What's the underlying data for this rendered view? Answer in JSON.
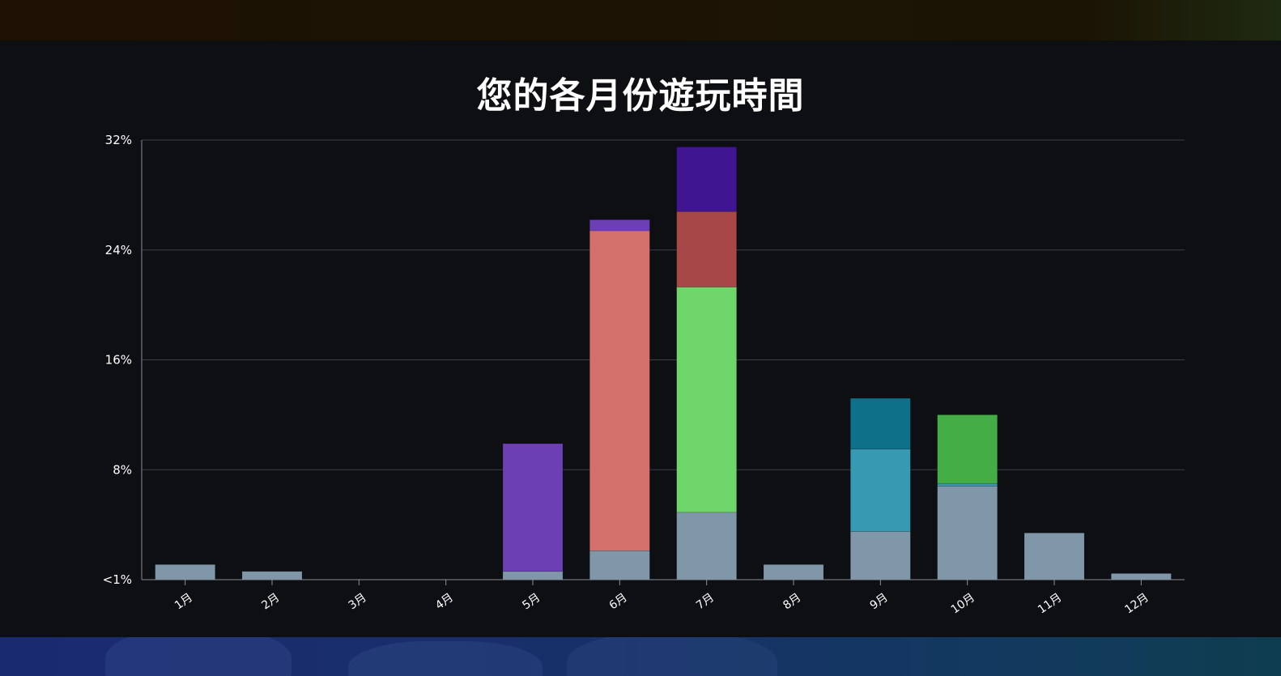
{
  "colors": {
    "background": "#0e0f13",
    "gridline": "#3c3f46",
    "axis": "#8a8e96",
    "text": "#ffffff"
  },
  "chart_data": {
    "type": "bar",
    "stacked": true,
    "title": "您的各月份遊玩時間",
    "xlabel": "",
    "ylabel": "",
    "ylim": [
      0,
      32
    ],
    "yticks": [
      {
        "value": 0,
        "label": "<1%"
      },
      {
        "value": 8,
        "label": "8%"
      },
      {
        "value": 16,
        "label": "16%"
      },
      {
        "value": 24,
        "label": "24%"
      },
      {
        "value": 32,
        "label": "32%"
      }
    ],
    "grid": true,
    "legend": "none",
    "categories": [
      "1月",
      "2月",
      "3月",
      "4月",
      "5月",
      "6月",
      "7月",
      "8月",
      "9月",
      "10月",
      "11月",
      "12月"
    ],
    "series": [
      {
        "color": "#7f97a9",
        "values": [
          1.1,
          0.6,
          0,
          0,
          0.6,
          2.1,
          4.9,
          1.1,
          3.5,
          6.8,
          3.4,
          0.45
        ]
      },
      {
        "color": "#6d3fb5",
        "values": [
          0,
          0,
          0,
          0,
          9.3,
          0,
          0,
          0,
          0,
          0,
          0,
          0
        ]
      },
      {
        "color": "#d4706c",
        "values": [
          0,
          0,
          0,
          0,
          0,
          23.3,
          0,
          0,
          0,
          0,
          0,
          0
        ]
      },
      {
        "color": "#6d3fb5",
        "values": [
          0,
          0,
          0,
          0,
          0,
          0.8,
          0,
          0,
          0,
          0,
          0,
          0
        ]
      },
      {
        "color": "#6fd66b",
        "values": [
          0,
          0,
          0,
          0,
          0,
          0,
          16.4,
          0,
          0,
          0,
          0,
          0
        ]
      },
      {
        "color": "#a84747",
        "values": [
          0,
          0,
          0,
          0,
          0,
          0,
          5.5,
          0,
          0,
          0,
          0,
          0
        ]
      },
      {
        "color": "#3f1592",
        "values": [
          0,
          0,
          0,
          0,
          0,
          0,
          4.7,
          0,
          0,
          0,
          0,
          0
        ]
      },
      {
        "color": "#3899b2",
        "values": [
          0,
          0,
          0,
          0,
          0,
          0,
          0,
          0,
          6.0,
          0.2,
          0,
          0
        ]
      },
      {
        "color": "#0f708a",
        "values": [
          0,
          0,
          0,
          0,
          0,
          0,
          0,
          0,
          3.7,
          0,
          0,
          0
        ]
      },
      {
        "color": "#44ad46",
        "values": [
          0,
          0,
          0,
          0,
          0,
          0,
          0,
          0,
          0,
          5.0,
          0,
          0
        ]
      }
    ]
  }
}
